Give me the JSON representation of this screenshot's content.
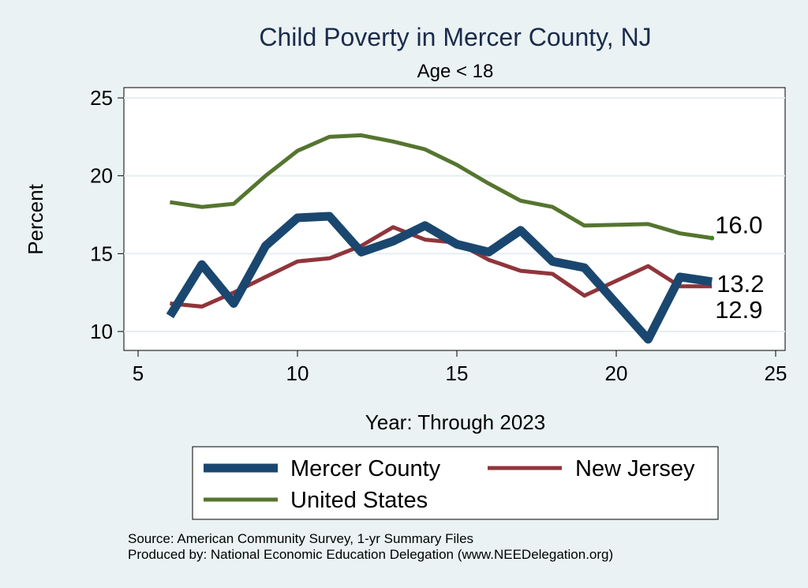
{
  "chart_data": {
    "type": "line",
    "title": "Child Poverty in Mercer County, NJ",
    "subtitle": "Age < 18",
    "xlabel": "Year: Through 2023",
    "ylabel": "Percent",
    "xlim": [
      5,
      25
    ],
    "ylim": [
      9.2,
      25.7
    ],
    "xticks": [
      5,
      10,
      15,
      20,
      25
    ],
    "yticks": [
      10,
      15,
      20,
      25
    ],
    "grid": true,
    "legend_position": "bottom",
    "series": [
      {
        "name": "Mercer County",
        "color": "#1a476f",
        "x": [
          6,
          7,
          8,
          9,
          10,
          11,
          12,
          13,
          14,
          15,
          16,
          17,
          18,
          19,
          21,
          22,
          23
        ],
        "y": [
          11.0,
          14.3,
          11.8,
          15.5,
          17.3,
          17.4,
          15.1,
          15.8,
          16.8,
          15.6,
          15.1,
          16.5,
          14.5,
          14.1,
          9.5,
          13.5,
          13.2
        ],
        "end_label": "13.2"
      },
      {
        "name": "New Jersey",
        "color": "#90353b",
        "x": [
          6,
          7,
          8,
          9,
          10,
          11,
          12,
          13,
          14,
          15,
          16,
          17,
          18,
          19,
          21,
          22,
          23
        ],
        "y": [
          11.8,
          11.6,
          12.5,
          13.5,
          14.5,
          14.7,
          15.5,
          16.7,
          15.9,
          15.7,
          14.6,
          13.9,
          13.7,
          12.3,
          14.2,
          12.9,
          12.9
        ],
        "end_label": "12.9"
      },
      {
        "name": "United States",
        "color": "#55752f",
        "x": [
          6,
          7,
          8,
          9,
          10,
          11,
          12,
          13,
          14,
          15,
          16,
          17,
          18,
          19,
          21,
          22,
          23
        ],
        "y": [
          18.3,
          18.0,
          18.2,
          20.0,
          21.6,
          22.5,
          22.6,
          22.2,
          21.7,
          20.7,
          19.5,
          18.4,
          18.0,
          16.8,
          16.9,
          16.3,
          16.0
        ],
        "end_label": "16.0"
      }
    ],
    "notes": [
      "Source: American Community Survey, 1-yr Summary Files",
      "Produced by: National Economic Education Delegation (www.NEEDelegation.org)"
    ]
  }
}
